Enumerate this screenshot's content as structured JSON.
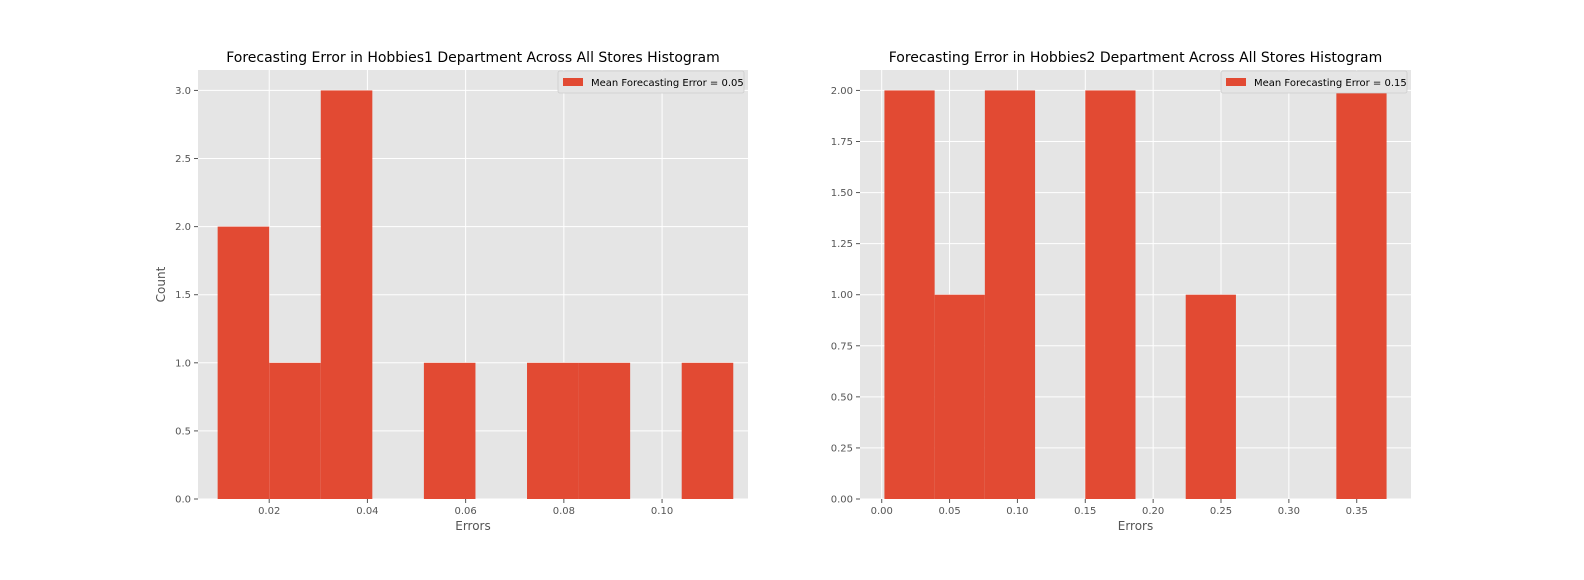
{
  "colors": {
    "bar": "#E24A33",
    "plot_background": "#E5E5E5",
    "grid": "#FFFFFF",
    "tick_text": "#555555",
    "title_text": "#000000"
  },
  "chart_data": [
    {
      "type": "bar",
      "title": "Forecasting Error in Hobbies1 Department Across All Stores Histogram",
      "xlabel": "Errors",
      "ylabel": "Count",
      "xlim": [
        0.0055,
        0.1175
      ],
      "ylim": [
        0,
        3.15
      ],
      "xticks": [
        0.02,
        0.04,
        0.06,
        0.08,
        0.1
      ],
      "xtick_labels": [
        "0.02",
        "0.04",
        "0.06",
        "0.08",
        "0.10"
      ],
      "yticks": [
        0.0,
        0.5,
        1.0,
        1.5,
        2.0,
        2.5,
        3.0
      ],
      "ytick_labels": [
        "0.0",
        "0.5",
        "1.0",
        "1.5",
        "2.0",
        "2.5",
        "3.0"
      ],
      "grid": true,
      "legend": {
        "label": "Mean Forecasting Error = 0.05",
        "position": "top-right"
      },
      "bins": [
        {
          "start": 0.0095,
          "end": 0.02,
          "count": 2
        },
        {
          "start": 0.02,
          "end": 0.0305,
          "count": 1
        },
        {
          "start": 0.0305,
          "end": 0.041,
          "count": 3
        },
        {
          "start": 0.041,
          "end": 0.0515,
          "count": 0
        },
        {
          "start": 0.0515,
          "end": 0.062,
          "count": 1
        },
        {
          "start": 0.062,
          "end": 0.0725,
          "count": 0
        },
        {
          "start": 0.0725,
          "end": 0.083,
          "count": 1
        },
        {
          "start": 0.083,
          "end": 0.0935,
          "count": 1
        },
        {
          "start": 0.0935,
          "end": 0.104,
          "count": 0
        },
        {
          "start": 0.104,
          "end": 0.1145,
          "count": 1
        }
      ]
    },
    {
      "type": "bar",
      "title": "Forecasting Error in Hobbies2 Department Across All Stores Histogram",
      "xlabel": "Errors",
      "ylabel": "",
      "xlim": [
        -0.016,
        0.39
      ],
      "ylim": [
        0,
        2.1
      ],
      "xticks": [
        0.0,
        0.05,
        0.1,
        0.15,
        0.2,
        0.25,
        0.3,
        0.35
      ],
      "xtick_labels": [
        "0.00",
        "0.05",
        "0.10",
        "0.15",
        "0.20",
        "0.25",
        "0.30",
        "0.35"
      ],
      "yticks": [
        0.0,
        0.25,
        0.5,
        0.75,
        1.0,
        1.25,
        1.5,
        1.75,
        2.0
      ],
      "ytick_labels": [
        "0.00",
        "0.25",
        "0.50",
        "0.75",
        "1.00",
        "1.25",
        "1.50",
        "1.75",
        "2.00"
      ],
      "grid": true,
      "legend": {
        "label": "Mean Forecasting Error = 0.15",
        "position": "top-right"
      },
      "bins": [
        {
          "start": 0.002,
          "end": 0.039,
          "count": 2
        },
        {
          "start": 0.039,
          "end": 0.076,
          "count": 1
        },
        {
          "start": 0.076,
          "end": 0.113,
          "count": 2
        },
        {
          "start": 0.113,
          "end": 0.15,
          "count": 0
        },
        {
          "start": 0.15,
          "end": 0.187,
          "count": 2
        },
        {
          "start": 0.187,
          "end": 0.224,
          "count": 0
        },
        {
          "start": 0.224,
          "end": 0.261,
          "count": 1
        },
        {
          "start": 0.261,
          "end": 0.298,
          "count": 0
        },
        {
          "start": 0.298,
          "end": 0.335,
          "count": 0
        },
        {
          "start": 0.335,
          "end": 0.372,
          "count": 2
        }
      ]
    }
  ]
}
